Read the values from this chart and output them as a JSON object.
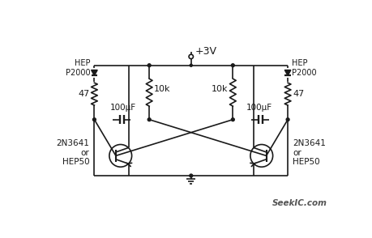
{
  "bg_color": "#ffffff",
  "line_color": "#1a1a1a",
  "text_color": "#1a1a1a",
  "title": "+3V",
  "label_left_top": "HEP\nP2000",
  "label_right_top": "HEP\nP2000",
  "label_left_bot": "2N3641\nor\nHEP50",
  "label_right_bot": "2N3641\nor\nHEP50",
  "label_r1": "47",
  "label_r2": "10k",
  "label_r3": "10k",
  "label_r4": "47",
  "label_c1": "100μF",
  "label_c2": "100μF",
  "watermark": "SeekIC.com",
  "figsize": [
    4.6,
    2.94
  ],
  "dpi": 100
}
